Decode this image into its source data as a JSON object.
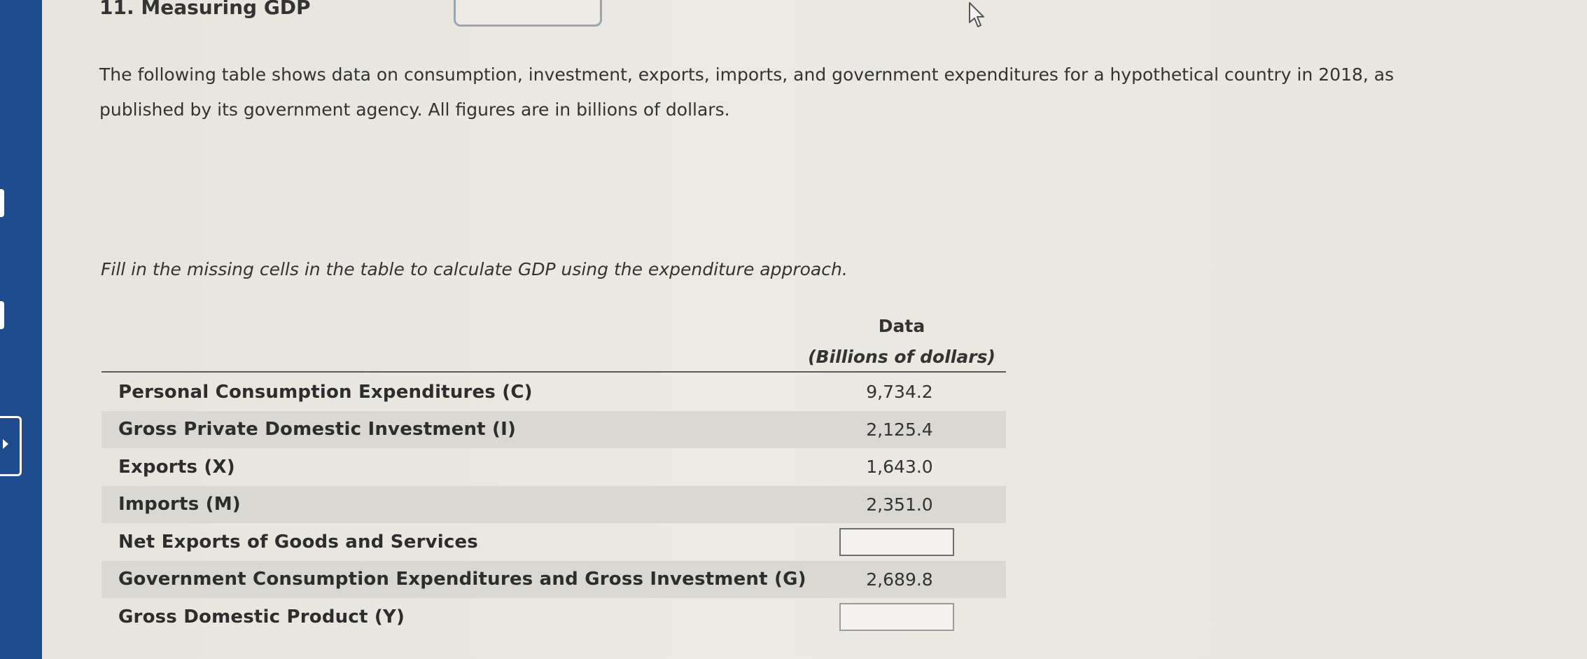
{
  "question": {
    "title": "11. Measuring GDP",
    "intro": "The following table shows data on consumption, investment, exports, imports, and government expenditures for a hypothetical country in 2018, as published by its government agency. All figures are in billions of dollars.",
    "instruction": "Fill in the missing cells in the table to calculate GDP using the expenditure approach."
  },
  "table": {
    "header_line1": "Data",
    "header_line2": "(Billions of dollars)",
    "rows": [
      {
        "label": "Personal Consumption Expenditures (C)",
        "value": "9,734.2"
      },
      {
        "label": "Gross Private Domestic Investment (I)",
        "value": "2,125.4"
      },
      {
        "label": "Exports (X)",
        "value": "1,643.0"
      },
      {
        "label": "Imports (M)",
        "value": "2,351.0"
      },
      {
        "label": "Net Exports of Goods and Services",
        "value": ""
      },
      {
        "label": "Government Consumption Expenditures and Gross Investment (G)",
        "value": "2,689.8"
      },
      {
        "label": "Gross Domestic Product (Y)",
        "value": ""
      }
    ]
  },
  "icons": {
    "cursor": "mouse-pointer-icon",
    "side_tab": "chevron-right-icon"
  },
  "colors": {
    "sidebar": "#1e4a8e",
    "row_shade": "#d9d8d3",
    "background": "#e9e7e0"
  }
}
